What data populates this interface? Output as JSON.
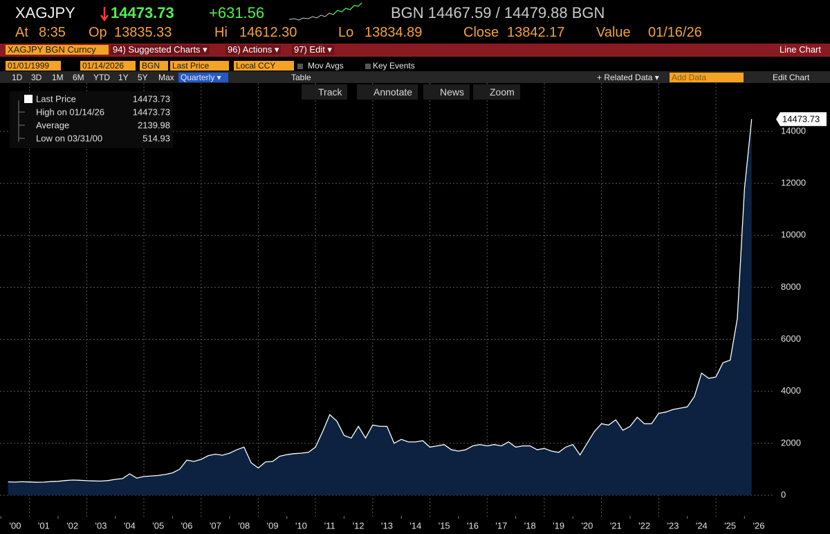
{
  "header": {
    "ticker": "XAGJPY",
    "last": "14473.73",
    "change": "+631.56",
    "bid_ask": "BGN 14467.59 / 14479.88 BGN",
    "quote": [
      {
        "label": "At",
        "value": "8:35"
      },
      {
        "label": "Op",
        "value": "13835.33"
      },
      {
        "label": "Hi",
        "value": "14612.30"
      },
      {
        "label": "Lo",
        "value": "13834.89"
      },
      {
        "label": "Close",
        "value": "13842.17"
      },
      {
        "label": "Value",
        "value": "01/16/26"
      }
    ]
  },
  "menu": {
    "security": "XAGJPY BGN Curncy",
    "items": [
      "94) Suggested Charts ▾",
      "96) Actions ▾",
      "97) Edit ▾"
    ],
    "chart_type": "Line Chart"
  },
  "controls": {
    "start": "01/01/1999",
    "end": "01/14/2026",
    "source": "BGN",
    "field": "Last Price",
    "currency": "Local CCY",
    "toggles": [
      "Mov Avgs",
      "Key Events"
    ],
    "periods": [
      "1D",
      "3D",
      "1M",
      "6M",
      "YTD",
      "1Y",
      "5Y",
      "Max"
    ],
    "frequency": "Quarterly ▾",
    "table": "Table",
    "related": "+ Related Data ▾",
    "add_data": "Add Data",
    "edit_chart": "Edit Chart"
  },
  "tools": [
    "Track",
    "Annotate",
    "News",
    "Zoom"
  ],
  "chart_data": {
    "type": "area",
    "x": [
      2000.25,
      2000.5,
      2000.75,
      2001,
      2001.25,
      2001.5,
      2001.75,
      2002,
      2002.25,
      2002.5,
      2002.75,
      2003,
      2003.25,
      2003.5,
      2003.75,
      2004,
      2004.25,
      2004.5,
      2004.75,
      2005,
      2005.25,
      2005.5,
      2005.75,
      2006,
      2006.25,
      2006.5,
      2006.75,
      2007,
      2007.25,
      2007.5,
      2007.75,
      2008,
      2008.25,
      2008.5,
      2008.75,
      2009,
      2009.25,
      2009.5,
      2009.75,
      2010,
      2010.25,
      2010.5,
      2010.75,
      2011,
      2011.25,
      2011.5,
      2011.75,
      2012,
      2012.25,
      2012.5,
      2012.75,
      2013,
      2013.25,
      2013.5,
      2013.75,
      2014,
      2014.25,
      2014.5,
      2014.75,
      2015,
      2015.25,
      2015.5,
      2015.75,
      2016,
      2016.25,
      2016.5,
      2016.75,
      2017,
      2017.25,
      2017.5,
      2017.75,
      2018,
      2018.25,
      2018.5,
      2018.75,
      2019,
      2019.25,
      2019.5,
      2019.75,
      2020,
      2020.25,
      2020.5,
      2020.75,
      2021,
      2021.25,
      2021.5,
      2021.75,
      2022,
      2022.25,
      2022.5,
      2022.75,
      2023,
      2023.25,
      2023.5,
      2023.75,
      2024,
      2024.25,
      2024.5,
      2024.75,
      2025,
      2025.25,
      2025.5,
      2025.75,
      2026,
      2026.25
    ],
    "series": [
      {
        "name": "Last Price",
        "color": "#ffffff",
        "fill": "#0c2240",
        "values": [
          514.93,
          505,
          520,
          510,
          500,
          505,
          525,
          535,
          565,
          585,
          575,
          560,
          550,
          545,
          565,
          610,
          640,
          820,
          660,
          720,
          740,
          760,
          800,
          860,
          1000,
          1350,
          1300,
          1380,
          1520,
          1580,
          1540,
          1620,
          1750,
          1850,
          1250,
          1050,
          1280,
          1300,
          1500,
          1560,
          1600,
          1620,
          1650,
          1850,
          2450,
          3100,
          2850,
          2300,
          2200,
          2650,
          2200,
          2700,
          2650,
          2650,
          2000,
          2150,
          2050,
          2050,
          2100,
          1850,
          1900,
          1950,
          1750,
          1700,
          1750,
          1900,
          1950,
          1900,
          1950,
          1900,
          2050,
          1850,
          1900,
          1900,
          1750,
          1800,
          1700,
          1650,
          1850,
          1950,
          1550,
          2000,
          2450,
          2750,
          2700,
          2900,
          2500,
          2650,
          3000,
          2750,
          2750,
          3150,
          3200,
          3300,
          3350,
          3400,
          3800,
          4700,
          4500,
          4550,
          5100,
          5200,
          6800,
          11800,
          14473.73
        ]
      }
    ],
    "legend_stats": [
      {
        "label": "High on 01/14/26",
        "value": 14473.73
      },
      {
        "label": "Average",
        "value": 2139.98
      },
      {
        "label": "Low on 03/31/00",
        "value": 514.93
      }
    ],
    "xlim": [
      2000,
      2027
    ],
    "ylim": [
      -800,
      15800
    ],
    "xticks": [
      {
        "value": 2000,
        "label": "'00"
      },
      {
        "value": 2001,
        "label": "'01"
      },
      {
        "value": 2002,
        "label": "'02"
      },
      {
        "value": 2003,
        "label": "'03"
      },
      {
        "value": 2004,
        "label": "'04"
      },
      {
        "value": 2005,
        "label": "'05"
      },
      {
        "value": 2006,
        "label": "'06"
      },
      {
        "value": 2007,
        "label": "'07"
      },
      {
        "value": 2008,
        "label": "'08"
      },
      {
        "value": 2009,
        "label": "'09"
      },
      {
        "value": 2010,
        "label": "'10"
      },
      {
        "value": 2011,
        "label": "'11"
      },
      {
        "value": 2012,
        "label": "'12"
      },
      {
        "value": 2013,
        "label": "'13"
      },
      {
        "value": 2014,
        "label": "'14"
      },
      {
        "value": 2015,
        "label": "'15"
      },
      {
        "value": 2016,
        "label": "'16"
      },
      {
        "value": 2017,
        "label": "'17"
      },
      {
        "value": 2018,
        "label": "'18"
      },
      {
        "value": 2019,
        "label": "'19"
      },
      {
        "value": 2020,
        "label": "'20"
      },
      {
        "value": 2021,
        "label": "'21"
      },
      {
        "value": 2022,
        "label": "'22"
      },
      {
        "value": 2023,
        "label": "'23"
      },
      {
        "value": 2024,
        "label": "'24"
      },
      {
        "value": 2025,
        "label": "'25"
      },
      {
        "value": 2026,
        "label": "'26"
      }
    ],
    "yticks": [
      0,
      2000,
      4000,
      6000,
      8000,
      10000,
      12000,
      14000
    ],
    "grid": true
  }
}
